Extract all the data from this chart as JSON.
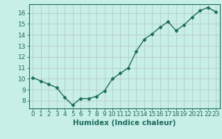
{
  "x": [
    0,
    1,
    2,
    3,
    4,
    5,
    6,
    7,
    8,
    9,
    10,
    11,
    12,
    13,
    14,
    15,
    16,
    17,
    18,
    19,
    20,
    21,
    22,
    23
  ],
  "y": [
    10.1,
    9.8,
    9.5,
    9.2,
    8.3,
    7.6,
    8.2,
    8.2,
    8.4,
    8.9,
    10.0,
    10.5,
    11.0,
    12.5,
    13.6,
    14.1,
    14.7,
    15.2,
    14.4,
    14.9,
    15.6,
    16.2,
    16.5,
    16.1
  ],
  "line_color": "#1a6b5a",
  "bg_color": "#c8eee8",
  "grid_color": "#b8c8c8",
  "xlabel": "Humidex (Indice chaleur)",
  "ylim": [
    7.3,
    16.8
  ],
  "xlim": [
    -0.5,
    23.5
  ],
  "yticks": [
    8,
    9,
    10,
    11,
    12,
    13,
    14,
    15,
    16
  ],
  "xticks": [
    0,
    1,
    2,
    3,
    4,
    5,
    6,
    7,
    8,
    9,
    10,
    11,
    12,
    13,
    14,
    15,
    16,
    17,
    18,
    19,
    20,
    21,
    22,
    23
  ],
  "marker": "D",
  "markersize": 2.5,
  "linewidth": 1.0,
  "xlabel_fontsize": 7.5,
  "tick_fontsize": 6.5
}
